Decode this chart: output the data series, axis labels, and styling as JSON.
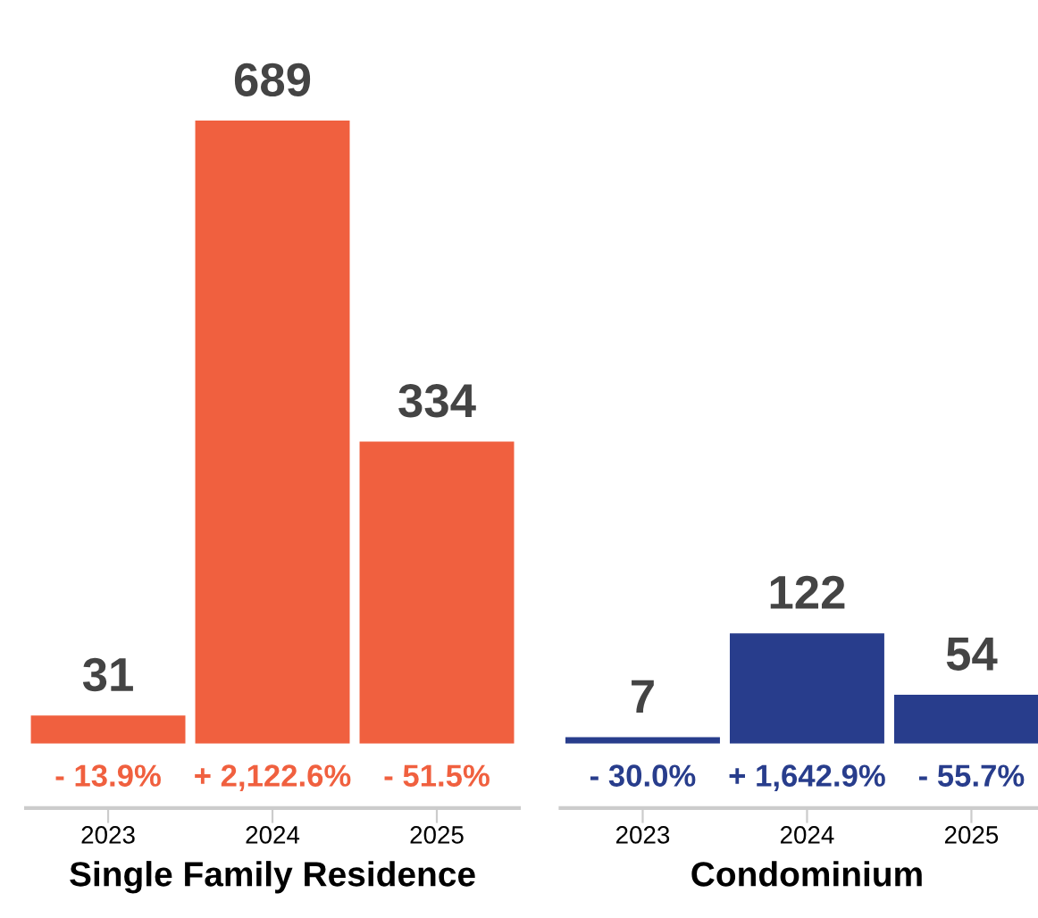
{
  "chart_data": [
    {
      "type": "bar",
      "xlabel": "Single Family Residence",
      "categories": [
        "2023",
        "2024",
        "2025"
      ],
      "values": [
        31,
        689,
        334
      ],
      "color": "#f0603f",
      "data_labels": true,
      "grid": false,
      "annotations": [
        "- 13.9%",
        "+ 2,122.6%",
        "- 51.5%"
      ]
    },
    {
      "type": "bar",
      "xlabel": "Condominium",
      "categories": [
        "2023",
        "2024",
        "2025"
      ],
      "values": [
        7,
        122,
        54
      ],
      "color": "#283d8c",
      "data_labels": true,
      "grid": false,
      "annotations": [
        "- 30.0%",
        "+ 1,642.9%",
        "- 55.7%"
      ]
    }
  ]
}
